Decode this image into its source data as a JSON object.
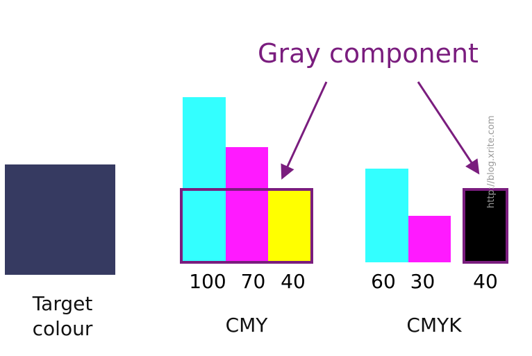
{
  "headline": {
    "text": "Gray component",
    "color": "#7a1d7e"
  },
  "target": {
    "label": "Target colour",
    "color": "#363a61"
  },
  "cmy": {
    "label": "CMY",
    "values": [
      "100",
      "70",
      "40"
    ],
    "colors": {
      "cyan": "#33ffff",
      "magenta": "#ff1aff",
      "yellow": "#ffff00"
    }
  },
  "cmyk": {
    "label": "CMYK",
    "values": [
      "60",
      "30",
      "40"
    ],
    "colors": {
      "cyan": "#33ffff",
      "magenta": "#ff1aff",
      "black": "#000000"
    }
  },
  "highlight_color": "#7a1d7e",
  "watermark": "http://blog.xrite.com"
}
